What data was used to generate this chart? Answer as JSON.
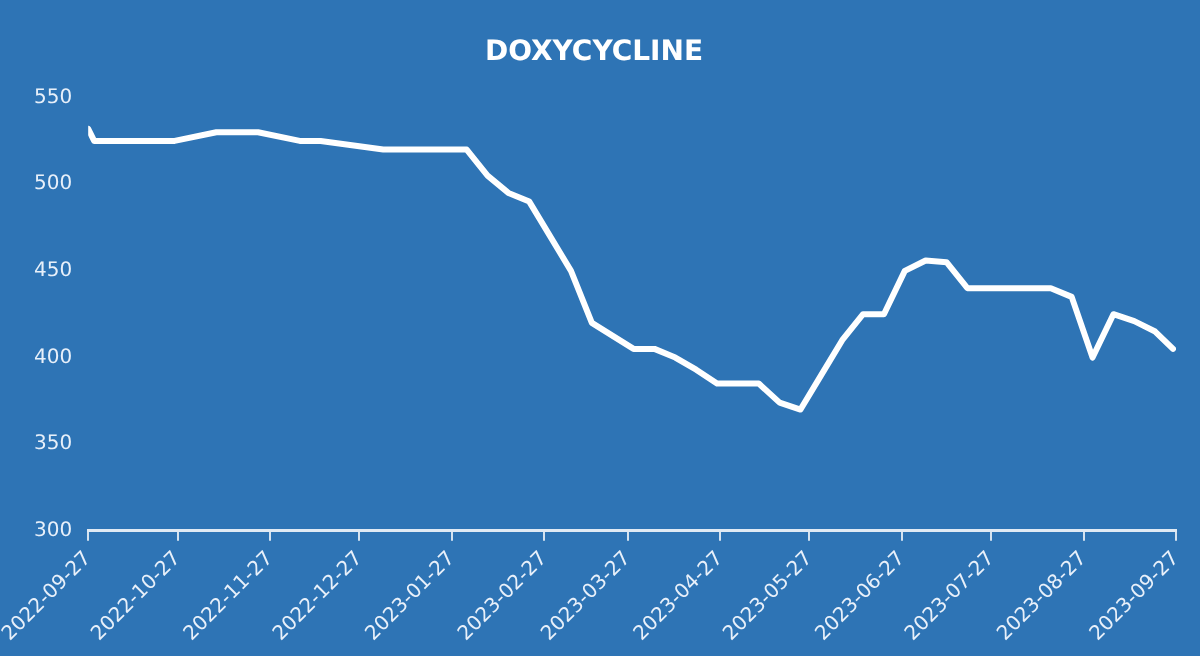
{
  "chart_data": {
    "type": "line",
    "title": "DOXYCYCLINE",
    "x": [
      "2022-09-27",
      "2022-09-29",
      "2022-10-12",
      "2022-10-19",
      "2022-10-26",
      "2022-11-09",
      "2022-11-16",
      "2022-11-23",
      "2022-12-07",
      "2022-12-14",
      "2023-01-04",
      "2023-01-11",
      "2023-02-01",
      "2023-02-08",
      "2023-02-15",
      "2023-02-22",
      "2023-03-08",
      "2023-03-15",
      "2023-03-29",
      "2023-04-05",
      "2023-04-12",
      "2023-04-19",
      "2023-04-26",
      "2023-05-03",
      "2023-05-10",
      "2023-05-17",
      "2023-05-24",
      "2023-05-31",
      "2023-06-07",
      "2023-06-14",
      "2023-06-21",
      "2023-06-28",
      "2023-07-05",
      "2023-07-12",
      "2023-07-19",
      "2023-07-26",
      "2023-08-02",
      "2023-08-09",
      "2023-08-16",
      "2023-08-23",
      "2023-08-30",
      "2023-09-06",
      "2023-09-13",
      "2023-09-20",
      "2023-09-26"
    ],
    "series": [
      {
        "color": "#ffffff",
        "values": [
          532,
          525,
          525,
          525,
          525,
          530,
          530,
          530,
          525,
          525,
          520,
          520,
          520,
          505,
          495,
          490,
          450,
          420,
          405,
          405,
          400,
          393,
          385,
          385,
          385,
          374,
          370,
          390,
          410,
          425,
          425,
          450,
          456,
          455,
          440,
          440,
          440,
          440,
          440,
          435,
          400,
          425,
          421,
          415,
          405
        ]
      }
    ],
    "xlim": [
      "2022-09-27",
      "2023-09-27"
    ],
    "xticks": [
      "2022-09-27",
      "2022-10-27",
      "2022-11-27",
      "2022-12-27",
      "2023-01-27",
      "2023-02-27",
      "2023-03-27",
      "2023-04-27",
      "2023-05-27",
      "2023-06-27",
      "2023-07-27",
      "2023-08-27",
      "2023-09-27"
    ],
    "ylim": [
      300,
      550
    ],
    "yticks": [
      300,
      350,
      400,
      450,
      500,
      550
    ],
    "grid": false,
    "legend": false,
    "marker": "none",
    "line_style": "solid"
  }
}
